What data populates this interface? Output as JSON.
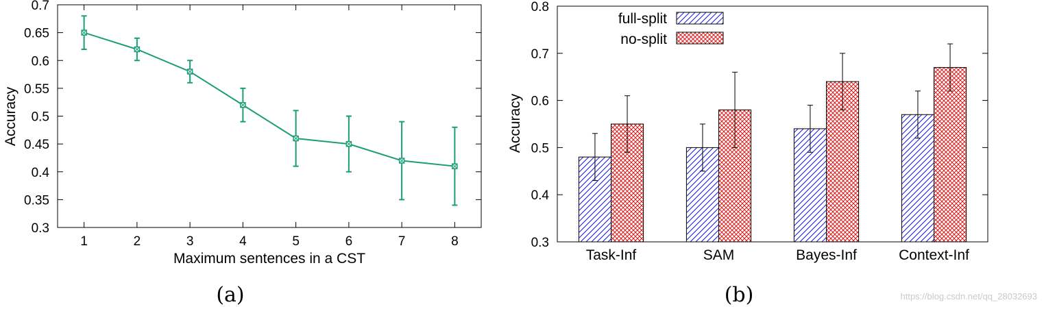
{
  "chart_data": [
    {
      "type": "line",
      "title": "",
      "caption": "(a)",
      "xlabel": "Maximum sentences in a CST",
      "ylabel": "Accuracy",
      "x": [
        1,
        2,
        3,
        4,
        5,
        6,
        7,
        8
      ],
      "x_tick_labels": [
        "1",
        "2",
        "3",
        "4",
        "5",
        "6",
        "7",
        "8"
      ],
      "y_tick_values": [
        0.3,
        0.35,
        0.4,
        0.45,
        0.5,
        0.55,
        0.6,
        0.65,
        0.7
      ],
      "y_tick_labels": [
        "0.3",
        "0.35",
        "0.4",
        "0.45",
        "0.5",
        "0.55",
        "0.6",
        "0.65",
        "0.7"
      ],
      "xlim": [
        0.5,
        8.5
      ],
      "ylim": [
        0.3,
        0.7
      ],
      "grid": false,
      "series": [
        {
          "name": "Accuracy",
          "color": "#1b9e77",
          "values": [
            0.65,
            0.62,
            0.58,
            0.52,
            0.46,
            0.45,
            0.42,
            0.41
          ],
          "err_low": [
            0.62,
            0.6,
            0.56,
            0.49,
            0.41,
            0.4,
            0.35,
            0.34
          ],
          "err_high": [
            0.68,
            0.64,
            0.6,
            0.55,
            0.51,
            0.5,
            0.49,
            0.48
          ]
        }
      ]
    },
    {
      "type": "bar",
      "title": "",
      "caption": "(b)",
      "xlabel": "",
      "ylabel": "Accuracy",
      "categories": [
        "Task-Inf",
        "SAM",
        "Bayes-Inf",
        "Context-Inf"
      ],
      "y_tick_values": [
        0.3,
        0.4,
        0.5,
        0.6,
        0.7,
        0.8
      ],
      "y_tick_labels": [
        "0.3",
        "0.4",
        "0.5",
        "0.6",
        "0.7",
        "0.8"
      ],
      "ylim": [
        0.3,
        0.8
      ],
      "grid": false,
      "legend_position": "top-left",
      "series": [
        {
          "name": "full-split",
          "color": "#0000dd",
          "pattern": "diagonal-hatch",
          "values": [
            0.48,
            0.5,
            0.54,
            0.57
          ],
          "err_low": [
            0.43,
            0.45,
            0.49,
            0.52
          ],
          "err_high": [
            0.53,
            0.55,
            0.59,
            0.62
          ]
        },
        {
          "name": "no-split",
          "color": "#dd0000",
          "pattern": "crosshatch",
          "values": [
            0.55,
            0.58,
            0.64,
            0.67
          ],
          "err_low": [
            0.49,
            0.5,
            0.58,
            0.62
          ],
          "err_high": [
            0.61,
            0.66,
            0.7,
            0.72
          ]
        }
      ]
    }
  ],
  "watermark": "https://blog.csdn.net/qq_28032693"
}
